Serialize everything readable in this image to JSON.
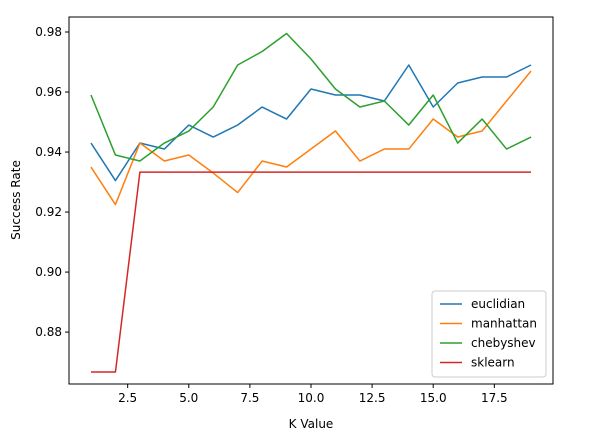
{
  "chart_data": {
    "type": "line",
    "title": "",
    "xlabel": "K Value",
    "ylabel": "Success Rate",
    "xlim": [
      0.1,
      19.9
    ],
    "ylim": [
      0.8627,
      0.985
    ],
    "xticks": [
      2.5,
      5.0,
      7.5,
      10.0,
      12.5,
      15.0,
      17.5
    ],
    "xtick_labels": [
      "2.5",
      "5.0",
      "7.5",
      "10.0",
      "12.5",
      "15.0",
      "17.5"
    ],
    "yticks": [
      0.88,
      0.9,
      0.92,
      0.94,
      0.96,
      0.98
    ],
    "ytick_labels": [
      "0.88",
      "0.90",
      "0.92",
      "0.94",
      "0.96",
      "0.98"
    ],
    "grid": false,
    "legend_position": "lower-right",
    "x": [
      1,
      2,
      3,
      4,
      5,
      6,
      7,
      8,
      9,
      10,
      11,
      12,
      13,
      14,
      15,
      16,
      17,
      18,
      19
    ],
    "series": [
      {
        "name": "euclidian",
        "color": "#1f77b4",
        "values": [
          0.943,
          0.9305,
          0.943,
          0.941,
          0.949,
          0.945,
          0.949,
          0.955,
          0.951,
          0.961,
          0.959,
          0.959,
          0.957,
          0.969,
          0.955,
          0.963,
          0.965,
          0.965,
          0.969
        ]
      },
      {
        "name": "manhattan",
        "color": "#ff7f0e",
        "values": [
          0.935,
          0.9225,
          0.943,
          0.937,
          0.939,
          0.933,
          0.9265,
          0.937,
          0.935,
          0.941,
          0.947,
          0.937,
          0.941,
          0.941,
          0.951,
          0.945,
          0.947,
          0.957,
          0.967
        ]
      },
      {
        "name": "chebyshev",
        "color": "#2ca02c",
        "values": [
          0.959,
          0.939,
          0.937,
          0.943,
          0.947,
          0.955,
          0.969,
          0.9735,
          0.9795,
          0.971,
          0.961,
          0.955,
          0.957,
          0.949,
          0.959,
          0.943,
          0.951,
          0.941,
          0.945
        ]
      },
      {
        "name": "sklearn",
        "color": "#d62728",
        "values": [
          0.8667,
          0.8667,
          0.9333,
          0.9333,
          0.9333,
          0.9333,
          0.9333,
          0.9333,
          0.9333,
          0.9333,
          0.9333,
          0.9333,
          0.9333,
          0.9333,
          0.9333,
          0.9333,
          0.9333,
          0.9333,
          0.9333
        ]
      }
    ]
  }
}
